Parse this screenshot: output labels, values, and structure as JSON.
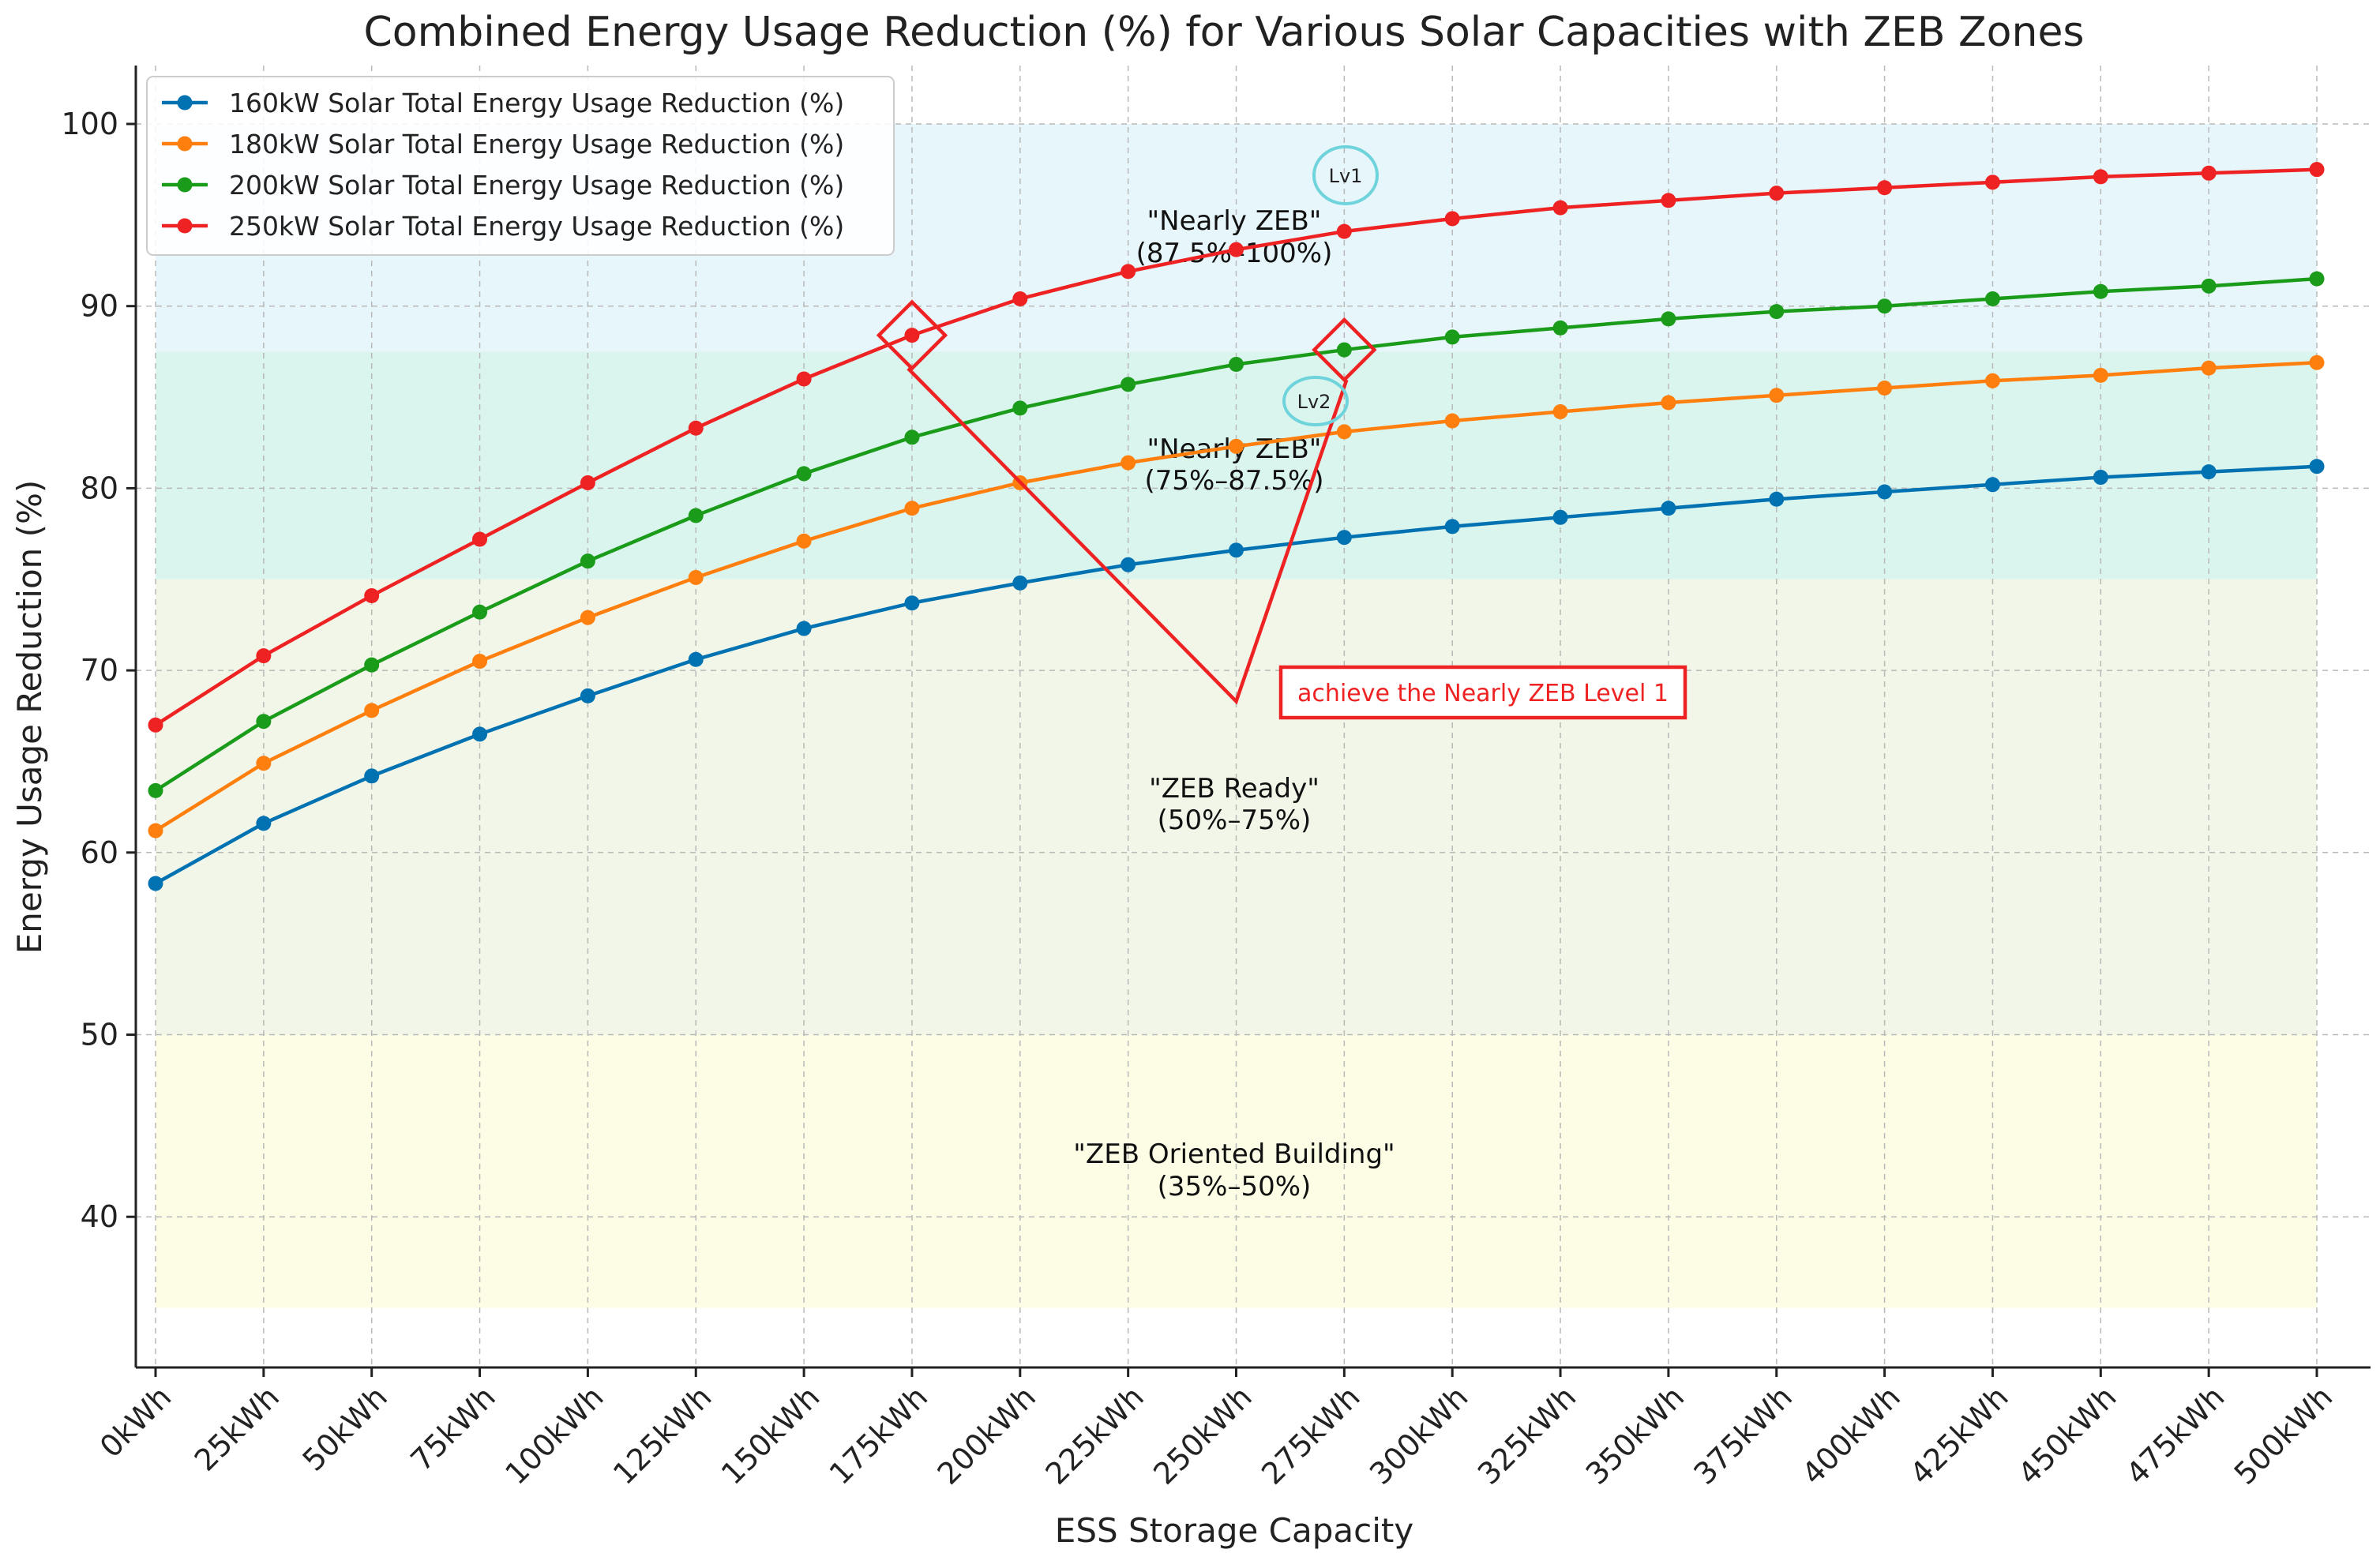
{
  "chart_data": {
    "type": "line",
    "title": "Combined Energy Usage Reduction (%) for Various Solar Capacities with ZEB Zones",
    "xlabel": "ESS Storage Capacity",
    "ylabel": "Energy Usage Reduction (%)",
    "categories": [
      "0kWh",
      "25kWh",
      "50kWh",
      "75kWh",
      "100kWh",
      "125kWh",
      "150kWh",
      "175kWh",
      "200kWh",
      "225kWh",
      "250kWh",
      "275kWh",
      "300kWh",
      "325kWh",
      "350kWh",
      "375kWh",
      "400kWh",
      "425kWh",
      "450kWh",
      "475kWh",
      "500kWh"
    ],
    "ylim": [
      32,
      103
    ],
    "yticks": [
      40,
      50,
      60,
      70,
      80,
      90,
      100
    ],
    "grid": true,
    "legend_position": "top-left",
    "series": [
      {
        "name": "160kW Solar Total Energy Usage Reduction (%)",
        "color": "#0072b2",
        "values": [
          58.3,
          61.6,
          64.2,
          66.5,
          68.6,
          70.6,
          72.3,
          73.7,
          74.8,
          75.8,
          76.6,
          77.3,
          77.9,
          78.4,
          78.9,
          79.4,
          79.8,
          80.2,
          80.6,
          80.9,
          81.2
        ]
      },
      {
        "name": "180kW Solar Total Energy Usage Reduction (%)",
        "color": "#ff7f0e",
        "values": [
          61.2,
          64.9,
          67.8,
          70.5,
          72.9,
          75.1,
          77.1,
          78.9,
          80.3,
          81.4,
          82.3,
          83.1,
          83.7,
          84.2,
          84.7,
          85.1,
          85.5,
          85.9,
          86.2,
          86.6,
          86.9
        ]
      },
      {
        "name": "200kW Solar Total Energy Usage Reduction (%)",
        "color": "#1a9c1a",
        "values": [
          63.4,
          67.2,
          70.3,
          73.2,
          76.0,
          78.5,
          80.8,
          82.8,
          84.4,
          85.7,
          86.8,
          87.6,
          88.3,
          88.8,
          89.3,
          89.7,
          90.0,
          90.4,
          90.8,
          91.1,
          91.5
        ]
      },
      {
        "name": "250kW Solar Total Energy Usage Reduction (%)",
        "color": "#ee2222",
        "values": [
          67.0,
          70.8,
          74.1,
          77.2,
          80.3,
          83.3,
          86.0,
          88.4,
          90.4,
          91.9,
          93.1,
          94.1,
          94.8,
          95.4,
          95.8,
          96.2,
          96.5,
          96.8,
          97.1,
          97.3,
          97.5
        ]
      }
    ],
    "zones": [
      {
        "label": "\"Nearly ZEB\"",
        "range_label": "(87.5%–100%)",
        "y_from": 87.5,
        "y_to": 100,
        "color": "#e6f6fa"
      },
      {
        "label": "\"Nearly ZEB\"",
        "range_label": "(75%–87.5%)",
        "y_from": 75,
        "y_to": 87.5,
        "color": "#daf4ee"
      },
      {
        "label": "\"ZEB Ready\"",
        "range_label": "(50%–75%)",
        "y_from": 50,
        "y_to": 75,
        "color": "#f1f6e8"
      },
      {
        "label": "\"ZEB Oriented Building\"",
        "range_label": "(35%–50%)",
        "y_from": 35,
        "y_to": 50,
        "color": "#fdfde6"
      }
    ],
    "annotations": {
      "note": "achieve the Nearly ZEB Level 1",
      "note_color": "#ee2222",
      "lv1": "Lv1",
      "lv2": "Lv2",
      "marker_1": {
        "x": "175kWh",
        "y": 88.4
      },
      "marker_2": {
        "x": "275kWh",
        "y": 87.6
      },
      "callout_tip": {
        "x": "250kWh",
        "y": 68.3
      },
      "circle_color": "#6fd3dc"
    }
  }
}
